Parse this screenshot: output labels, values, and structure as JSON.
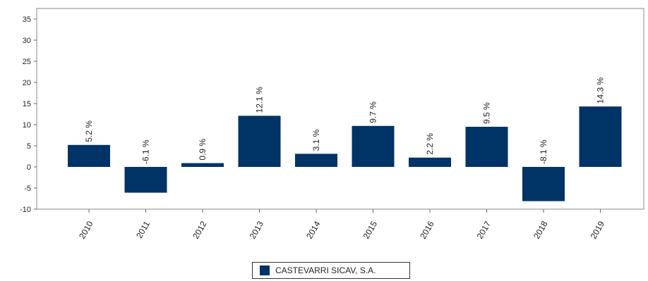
{
  "chart_data": {
    "type": "bar",
    "categories": [
      "2010",
      "2011",
      "2012",
      "2013",
      "2014",
      "2015",
      "2016",
      "2017",
      "2018",
      "2019"
    ],
    "series": [
      {
        "name": "CASTEVARRI SICAV, S.A.",
        "values": [
          5.2,
          -6.1,
          0.9,
          12.1,
          3.1,
          9.7,
          2.2,
          9.5,
          -8.1,
          14.3
        ],
        "labels": [
          "5.2 %",
          "-6.1 %",
          "0.9 %",
          "12.1 %",
          "3.1 %",
          "9.7 %",
          "2.2 %",
          "9.5 %",
          "-8.1 %",
          "14.3 %"
        ]
      }
    ],
    "yticks": [
      "-10",
      "-5",
      "0",
      "5",
      "10",
      "15",
      "20",
      "25",
      "30",
      "35"
    ],
    "ylim": [
      -10,
      37.5
    ],
    "grid": false,
    "legend_position": "bottom-center",
    "bar_color": "#003366"
  },
  "legend": {
    "label": "CASTEVARRI SICAV, S.A.",
    "color": "#003366"
  }
}
